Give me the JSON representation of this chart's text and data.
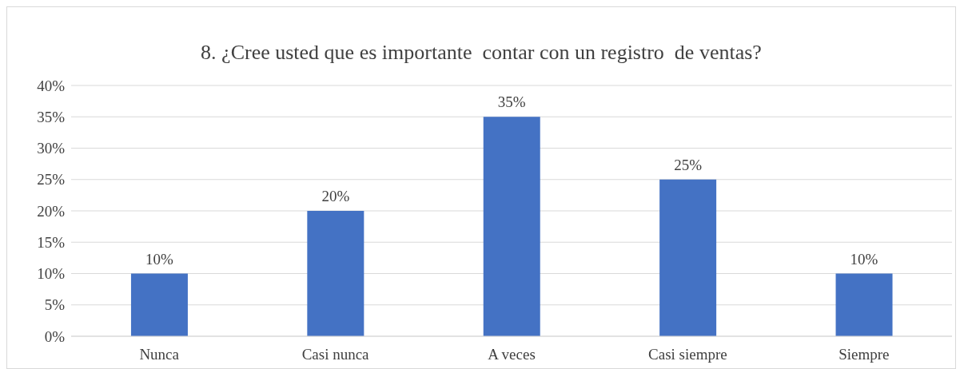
{
  "chart_data": {
    "type": "bar",
    "title": "8. ¿Cree usted que es importante  contar con un registro  de ventas?",
    "categories": [
      "Nunca",
      "Casi nunca",
      "A veces",
      "Casi siempre",
      "Siempre"
    ],
    "values": [
      10,
      20,
      35,
      25,
      10
    ],
    "value_labels": [
      "10%",
      "20%",
      "35%",
      "25%",
      "10%"
    ],
    "color": "#4472c4",
    "ylim": [
      0,
      40
    ],
    "yticks": [
      {
        "value": 0,
        "label": "0%"
      },
      {
        "value": 5,
        "label": "5%"
      },
      {
        "value": 10,
        "label": "10%"
      },
      {
        "value": 15,
        "label": "15%"
      },
      {
        "value": 20,
        "label": "20%"
      },
      {
        "value": 25,
        "label": "25%"
      },
      {
        "value": 30,
        "label": "30%"
      },
      {
        "value": 35,
        "label": "35%"
      },
      {
        "value": 40,
        "label": "40%"
      }
    ],
    "grid": "y",
    "legend": false
  }
}
